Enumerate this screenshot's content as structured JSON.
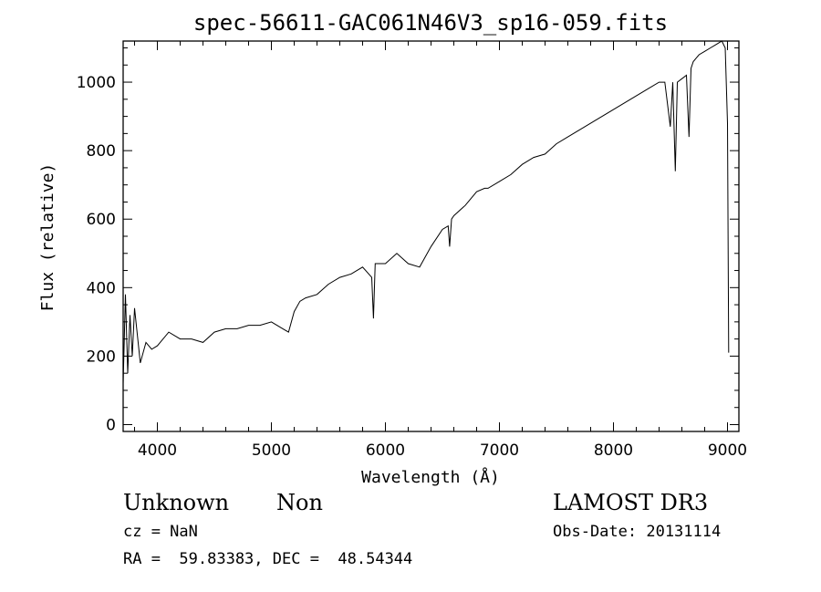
{
  "chart_data": {
    "type": "line",
    "title": "spec-56611-GAC061N46V3_sp16-059.fits",
    "xlabel": "Wavelength (Å)",
    "ylabel": "Flux (relative)",
    "xlim": [
      3700,
      9100
    ],
    "ylim": [
      -20,
      1120
    ],
    "xticks": [
      4000,
      5000,
      6000,
      7000,
      8000,
      9000
    ],
    "yticks": [
      0,
      200,
      400,
      600,
      800,
      1000
    ],
    "grid": false,
    "series": [
      {
        "x": [
          3700,
          3720,
          3740,
          3760,
          3780,
          3800,
          3850,
          3900,
          3950,
          4000,
          4100,
          4200,
          4300,
          4400,
          4500,
          4600,
          4700,
          4800,
          4900,
          5000,
          5100,
          5150,
          5200,
          5250,
          5300,
          5400,
          5500,
          5600,
          5700,
          5800,
          5880,
          5895,
          5910,
          6000,
          6100,
          6200,
          6300,
          6400,
          6500,
          6550,
          6563,
          6580,
          6600,
          6700,
          6800,
          6870,
          6900,
          7000,
          7100,
          7200,
          7300,
          7400,
          7500,
          7600,
          7700,
          7800,
          7900,
          8000,
          8100,
          8200,
          8300,
          8400,
          8450,
          8498,
          8520,
          8542,
          8560,
          8600,
          8640,
          8662,
          8680,
          8700,
          8750,
          8800,
          8850,
          8900,
          8950,
          8980,
          9000,
          9010
        ],
        "y": [
          120,
          380,
          150,
          320,
          200,
          340,
          180,
          240,
          220,
          230,
          270,
          250,
          250,
          240,
          270,
          280,
          280,
          290,
          290,
          300,
          280,
          270,
          330,
          360,
          370,
          380,
          410,
          430,
          440,
          460,
          430,
          310,
          470,
          470,
          500,
          470,
          460,
          520,
          570,
          580,
          520,
          600,
          610,
          640,
          680,
          690,
          690,
          710,
          730,
          760,
          780,
          790,
          820,
          840,
          860,
          880,
          900,
          920,
          940,
          960,
          980,
          1000,
          1000,
          870,
          1000,
          740,
          1000,
          1010,
          1020,
          840,
          1040,
          1060,
          1080,
          1090,
          1100,
          1110,
          1120,
          1100,
          880,
          210
        ]
      }
    ]
  },
  "info": {
    "object_class": "Unknown",
    "subclass": "Non",
    "survey": "LAMOST DR3",
    "cz": "cz = NaN",
    "obs_date": "Obs-Date: 20131114",
    "coords": "RA =  59.83383, DEC =  48.54344"
  }
}
